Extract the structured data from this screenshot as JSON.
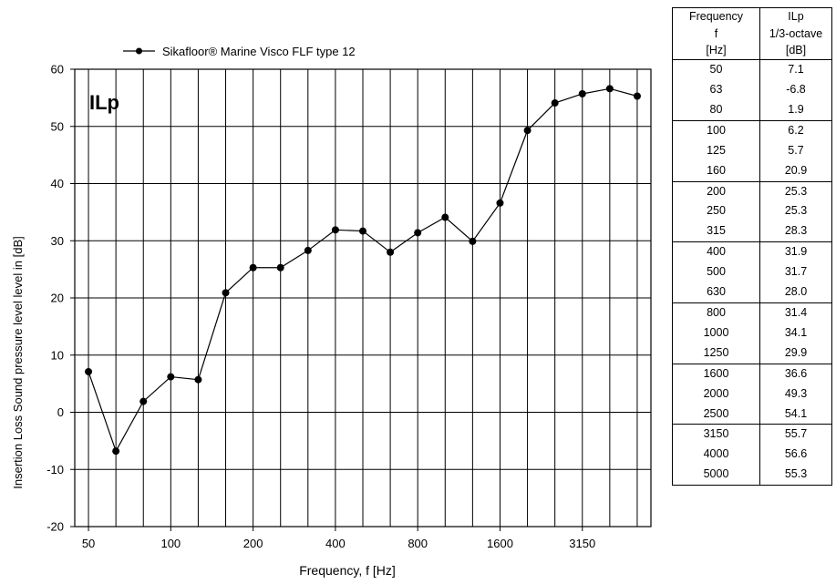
{
  "chart_data": {
    "type": "line",
    "title": "ILp",
    "xlabel": "Frequency, f [Hz]",
    "ylabel": "Insertion Loss  Sound pressure level level in   [dB]",
    "ylim": [
      -20,
      60
    ],
    "y_ticks": [
      60,
      50,
      40,
      30,
      20,
      10,
      0,
      -10,
      -20
    ],
    "y_tick_labels": [
      "60",
      "50",
      "40",
      "30",
      "20",
      "10",
      "0",
      "-10",
      "-20"
    ],
    "x_scale": "log (1/3-octave bands)",
    "x_categories": [
      "50",
      "63",
      "80",
      "100",
      "125",
      "160",
      "200",
      "250",
      "315",
      "400",
      "500",
      "630",
      "800",
      "1000",
      "1250",
      "1600",
      "2000",
      "2500",
      "3150",
      "4000",
      "5000"
    ],
    "x_tick_labels": [
      "50",
      "100",
      "200",
      "400",
      "800",
      "1600",
      "3150"
    ],
    "grid": true,
    "legend_position": "top-left, above plot",
    "series": [
      {
        "name": "Sikafloor® Marine Visco FLF type 12",
        "x": [
          50,
          63,
          80,
          100,
          125,
          160,
          200,
          250,
          315,
          400,
          500,
          630,
          800,
          1000,
          1250,
          1600,
          2000,
          2500,
          3150,
          4000,
          5000
        ],
        "values": [
          7.1,
          -6.8,
          1.9,
          6.2,
          5.7,
          20.9,
          25.3,
          25.3,
          28.3,
          31.9,
          31.7,
          28.0,
          31.4,
          34.1,
          29.9,
          36.6,
          49.3,
          54.1,
          55.7,
          56.6,
          55.3
        ],
        "color": "#000000",
        "marker": "circle"
      }
    ]
  },
  "table": {
    "header_rows": [
      [
        "Frequency",
        "ILp"
      ],
      [
        "f",
        "1/3-octave"
      ],
      [
        "[Hz]",
        "[dB]"
      ]
    ],
    "groups": [
      [
        [
          "50",
          "7.1"
        ],
        [
          "63",
          "-6.8"
        ],
        [
          "80",
          "1.9"
        ]
      ],
      [
        [
          "100",
          "6.2"
        ],
        [
          "125",
          "5.7"
        ],
        [
          "160",
          "20.9"
        ]
      ],
      [
        [
          "200",
          "25.3"
        ],
        [
          "250",
          "25.3"
        ],
        [
          "315",
          "28.3"
        ]
      ],
      [
        [
          "400",
          "31.9"
        ],
        [
          "500",
          "31.7"
        ],
        [
          "630",
          "28.0"
        ]
      ],
      [
        [
          "800",
          "31.4"
        ],
        [
          "1000",
          "34.1"
        ],
        [
          "1250",
          "29.9"
        ]
      ],
      [
        [
          "1600",
          "36.6"
        ],
        [
          "2000",
          "49.3"
        ],
        [
          "2500",
          "54.1"
        ]
      ],
      [
        [
          "3150",
          "55.7"
        ],
        [
          "4000",
          "56.6"
        ],
        [
          "5000",
          "55.3"
        ]
      ]
    ]
  }
}
